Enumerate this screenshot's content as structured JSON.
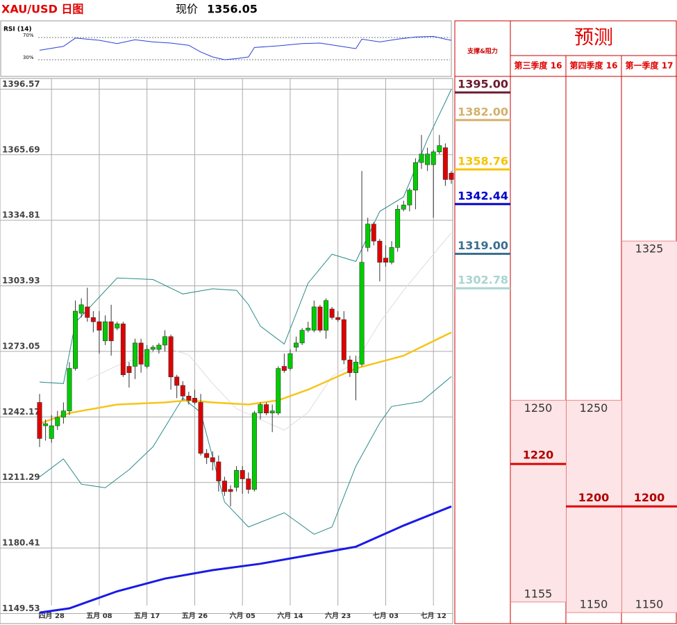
{
  "header": {
    "title": "XAU/USD 日图",
    "price_label": "现价",
    "price": 1356.05
  },
  "chart_data": [
    {
      "type": "line",
      "title": "RSI (14)",
      "color": "#2b3fd6",
      "x": [
        0,
        4,
        6,
        10,
        13,
        16,
        19,
        22,
        25,
        27,
        29,
        31,
        33,
        35,
        36,
        40,
        44,
        47,
        50,
        53,
        54,
        57,
        60,
        63,
        66,
        68,
        69
      ],
      "values": [
        47,
        54,
        69,
        65,
        59,
        66,
        62,
        60,
        56,
        44,
        35,
        30,
        32,
        35,
        52,
        55,
        59,
        60,
        55,
        50,
        67,
        62,
        67,
        71,
        72,
        67,
        65
      ],
      "ylim": [
        0,
        100
      ],
      "yticks": [
        {
          "value": 70,
          "label": "70%"
        },
        {
          "value": 30,
          "label": "30%"
        }
      ]
    },
    {
      "type": "candlestick",
      "categories": [
        null,
        null,
        "四月 28",
        null,
        null,
        null,
        null,
        null,
        null,
        null,
        "五月 08",
        null,
        null,
        null,
        null,
        null,
        null,
        null,
        "五月 17",
        null,
        null,
        null,
        null,
        null,
        null,
        null,
        "五月 26",
        null,
        null,
        null,
        null,
        null,
        null,
        null,
        "六月 05",
        null,
        null,
        null,
        null,
        null,
        null,
        null,
        "六月 14",
        null,
        null,
        null,
        null,
        null,
        null,
        null,
        "六月 23",
        null,
        null,
        null,
        null,
        null,
        null,
        null,
        "七月 03",
        null,
        null,
        null,
        null,
        null,
        null,
        null,
        "七月 12",
        null,
        null,
        null
      ],
      "open": [
        1249,
        1238,
        1232,
        1238,
        1242,
        1245,
        1265,
        1291,
        1294,
        1289,
        1287,
        1278,
        1287,
        1284,
        1286,
        1266,
        1266,
        1277,
        1266,
        1274,
        1274,
        1276,
        1280,
        1261,
        1257,
        1252,
        1251,
        1249,
        1225,
        1223,
        1221,
        1212,
        1208,
        1209,
        1217,
        1213,
        1208,
        1244,
        1248,
        1244,
        1244,
        1266,
        1265,
        1275,
        1277,
        1283,
        1283,
        1294,
        1283,
        1293,
        1289,
        1288,
        1269,
        1263,
        1267,
        1322,
        1333,
        1325,
        1317,
        1315,
        1322,
        1340,
        1342,
        1349,
        1362,
        1361,
        1361,
        1367,
        1369,
        1357
      ],
      "high": [
        1253,
        1241,
        1243,
        1245,
        1249,
        1268,
        1297,
        1298,
        1303,
        1292,
        1292,
        1290,
        1295,
        1287,
        1287,
        1268,
        1279,
        1279,
        1276,
        1276,
        1277,
        1283,
        1281,
        1262,
        1259,
        1254,
        1255,
        1253,
        1227,
        1226,
        1224,
        1214,
        1210,
        1219,
        1219,
        1216,
        1245,
        1249,
        1249,
        1248,
        1266,
        1272,
        1274,
        1280,
        1284,
        1287,
        1297,
        1295,
        1298,
        1294,
        1292,
        1292,
        1271,
        1271,
        1358,
        1336,
        1334,
        1326,
        1323,
        1325,
        1342,
        1344,
        1350,
        1364,
        1375,
        1369,
        1368,
        1375,
        1371,
        1358
      ],
      "low": [
        1228,
        1231,
        1230,
        1236,
        1239,
        1243,
        1264,
        1289,
        1287,
        1282,
        1272,
        1276,
        1271,
        1283,
        1261,
        1256,
        1260,
        1263,
        1265,
        1273,
        1272,
        1273,
        1255,
        1251,
        1250,
        1248,
        1248,
        1224,
        1220,
        1217,
        1207,
        1205,
        1200,
        1207,
        1206,
        1206,
        1207,
        1241,
        1243,
        1235,
        1243,
        1263,
        1264,
        1273,
        1276,
        1282,
        1282,
        1282,
        1279,
        1288,
        1287,
        1267,
        1261,
        1250,
        1266,
        1320,
        1323,
        1306,
        1313,
        1314,
        1320,
        1339,
        1339,
        1340,
        1359,
        1358,
        1336,
        1366,
        1351,
        1352
      ],
      "close": [
        1232,
        1239,
        1238,
        1242,
        1245,
        1265,
        1292,
        1295,
        1289,
        1287,
        1283,
        1287,
        1278,
        1286,
        1262,
        1263,
        1277,
        1267,
        1274,
        1275,
        1276,
        1280,
        1261,
        1257,
        1252,
        1250,
        1249,
        1225,
        1223,
        1221,
        1212,
        1207,
        1207,
        1217,
        1213,
        1208,
        1244,
        1248,
        1244,
        1245,
        1265,
        1264,
        1272,
        1277,
        1283,
        1284,
        1294,
        1283,
        1297,
        1289,
        1288,
        1269,
        1263,
        1268,
        1315,
        1333,
        1325,
        1315,
        1315,
        1322,
        1340,
        1342,
        1349,
        1362,
        1366,
        1366,
        1367,
        1370,
        1354,
        1354
      ],
      "up_color": "#00cc00",
      "down_color": "#e00000",
      "overlays": [
        {
          "color": "#dddddd",
          "width": 1,
          "x": [
            8,
            13,
            21,
            25,
            29,
            33,
            37,
            41,
            45,
            49,
            53,
            57,
            61,
            65,
            69
          ],
          "values": [
            1259.6,
            1266.3,
            1274.8,
            1271.4,
            1257.9,
            1246.0,
            1240.9,
            1235.9,
            1244.3,
            1261.2,
            1268.0,
            1286.6,
            1301.8,
            1315.4,
            1328.9
          ]
        },
        {
          "color": "#2a8a8a",
          "width": 1,
          "x": [
            0,
            4,
            6,
            13,
            19,
            24,
            29,
            33,
            35,
            37,
            41,
            45,
            49,
            53,
            57,
            61,
            65,
            69
          ],
          "values": [
            1258.6,
            1257.9,
            1286.6,
            1307.6,
            1306.9,
            1300.1,
            1302.5,
            1301.8,
            1295.1,
            1284.9,
            1276.5,
            1305.2,
            1318.8,
            1315.4,
            1339.0,
            1345.8,
            1372.9,
            1396.5
          ]
        },
        {
          "color": "#2a8a8a",
          "width": 1,
          "x": [
            0,
            4,
            7,
            11,
            15,
            19,
            24,
            27,
            31,
            35,
            41,
            46,
            49,
            53,
            57,
            59,
            64,
            69
          ],
          "values": [
            1213.9,
            1222.4,
            1210.5,
            1208.8,
            1217.3,
            1228.1,
            1251.1,
            1244.3,
            1202.1,
            1190.3,
            1197.0,
            1186.9,
            1190.3,
            1219.0,
            1239.3,
            1247.1,
            1249.4,
            1261.2
          ]
        },
        {
          "color": "#f5c518",
          "width": 2.5,
          "x": [
            0,
            5,
            13,
            21,
            25,
            29,
            35,
            40,
            45,
            53,
            61,
            69
          ],
          "values": [
            1239,
            1244,
            1248,
            1249,
            1250,
            1249,
            1248,
            1250,
            1255,
            1265,
            1271,
            1282
          ]
        },
        {
          "color": "#1a1ae6",
          "width": 3,
          "x": [
            0,
            5,
            13,
            21,
            29,
            37,
            45,
            53,
            61,
            69
          ],
          "values": [
            1150,
            1152,
            1160,
            1166,
            1170,
            1173,
            1177,
            1181,
            1191,
            1200
          ]
        }
      ],
      "ylim": [
        1144.8,
        1401.6
      ],
      "yticks": [
        1396.57,
        1365.69,
        1334.81,
        1303.93,
        1273.05,
        1242.17,
        1211.29,
        1180.41,
        1149.53
      ],
      "grid": true
    }
  ],
  "levels": {
    "title": "支撑&阻力",
    "items": [
      {
        "value": 1395,
        "label": "1395.00",
        "color": "#6b1a2e"
      },
      {
        "value": 1382,
        "label": "1382.00",
        "color": "#d4b06a"
      },
      {
        "value": 1358.76,
        "color": "#f5c400"
      },
      {
        "value": 1342.44,
        "color": "#0000cc"
      },
      {
        "value": 1319,
        "label": "1319.00",
        "color": "#3a6f8f"
      },
      {
        "value": 1302.78,
        "color": "#a8d5d0"
      }
    ]
  },
  "forecast": {
    "title": "预测",
    "columns": [
      {
        "name": "第三季度 16",
        "high": 1250,
        "mid": 1220,
        "low": 1155
      },
      {
        "name": "第四季度 16",
        "high": 1250,
        "mid": 1200,
        "low": 1150
      },
      {
        "name": "第一季度 17",
        "high": 1325,
        "mid": 1200,
        "low": 1150
      }
    ]
  }
}
